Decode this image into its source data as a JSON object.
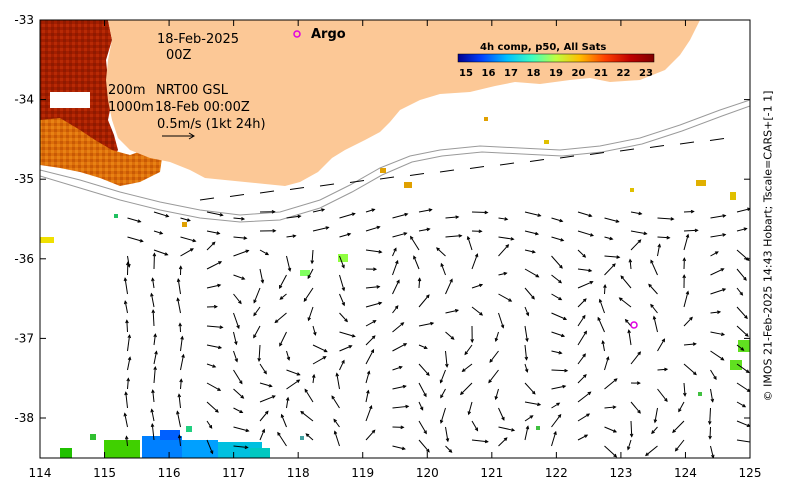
{
  "title_block": {
    "date": "18-Feb-2025",
    "hour": "00Z",
    "contour_label_1": "200m",
    "contour_label_2": "1000m",
    "product": "NRT00 GSL",
    "product_time": "18-Feb 00:00Z",
    "scale_label": "0.5m/s (1kt 24h)"
  },
  "legend": {
    "argo_label": "Argo",
    "argo_color": "#e000e0"
  },
  "colorbar": {
    "title": "4h comp, p50, All Sats",
    "ticks": [
      "15",
      "16",
      "17",
      "18",
      "19",
      "20",
      "21",
      "22",
      "23"
    ],
    "colors": [
      "#00008f",
      "#0040ff",
      "#00c0ff",
      "#40ffbf",
      "#bfff40",
      "#ffbf00",
      "#ff4000",
      "#bf0000",
      "#800000"
    ]
  },
  "axes": {
    "x_ticks": [
      "114",
      "115",
      "116",
      "117",
      "118",
      "119",
      "120",
      "121",
      "122",
      "123",
      "124",
      "125"
    ],
    "y_ticks": [
      "-33",
      "-34",
      "-35",
      "-36",
      "-37",
      "-38"
    ]
  },
  "credit": "© IMOS 21-Feb-2025 14:43 Hobart; Tscale=CARS+[-1 1]",
  "colors": {
    "land": "#fcc896",
    "sst_warm": "#a31e00",
    "sst_orange": "#dc6e0a"
  },
  "chart_data": {
    "type": "map",
    "xlim": [
      114,
      125
    ],
    "ylim": [
      -38.5,
      -33
    ],
    "argo_floats": [
      {
        "lon": 118.0,
        "lat": -33.17
      },
      {
        "lon": 123.2,
        "lat": -36.85
      }
    ]
  }
}
